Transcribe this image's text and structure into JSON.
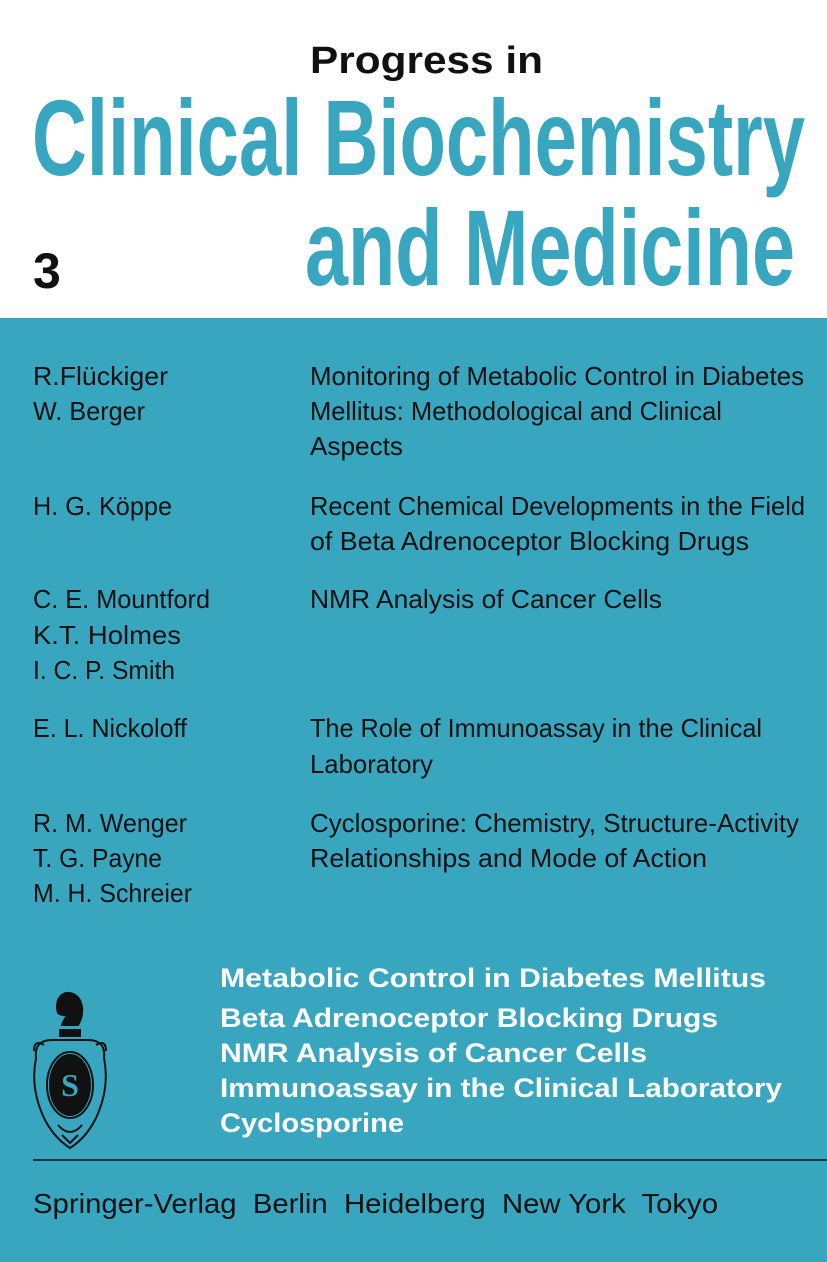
{
  "series_label": "Progress in",
  "title_line1": "Clinical Biochemistry",
  "title_line2": "and Medicine",
  "volume": "3",
  "colors": {
    "accent": "#39a6c0",
    "text": "#111111",
    "highlight": "#ffffff"
  },
  "contents": [
    {
      "authors": [
        "R.Flückiger",
        "W. Berger"
      ],
      "title_lines": [
        "Monitoring of Metabolic Control in Diabetes",
        "Mellitus: Methodological and Clinical",
        "Aspects"
      ]
    },
    {
      "authors": [
        "H. G. Köppe"
      ],
      "title_lines": [
        "Recent Chemical Developments in the Field",
        "of Beta Adrenoceptor Blocking Drugs"
      ]
    },
    {
      "authors": [
        "C. E. Mountford",
        "K.T. Holmes",
        "I. C. P. Smith"
      ],
      "title_lines": [
        "NMR Analysis of Cancer Cells"
      ]
    },
    {
      "authors": [
        "E. L. Nickoloff"
      ],
      "title_lines": [
        "The Role of Immunoassay in the Clinical",
        "Laboratory"
      ]
    },
    {
      "authors": [
        "R. M. Wenger",
        "T. G. Payne",
        "M. H. Schreier"
      ],
      "title_lines": [
        "Cyclosporine: Chemistry, Structure-Activity",
        "Relationships and Mode of Action"
      ]
    }
  ],
  "topics": [
    "Metabolic Control in Diabetes Mellitus",
    "Beta Adrenoceptor Blocking Drugs",
    "NMR Analysis of Cancer Cells",
    "Immunoassay in the Clinical Laboratory",
    "Cyclosporine"
  ],
  "logo": {
    "name": "springer-knight-logo",
    "letters": "S"
  },
  "publisher": "Springer-Verlag  Berlin  Heidelberg  New York  Tokyo"
}
